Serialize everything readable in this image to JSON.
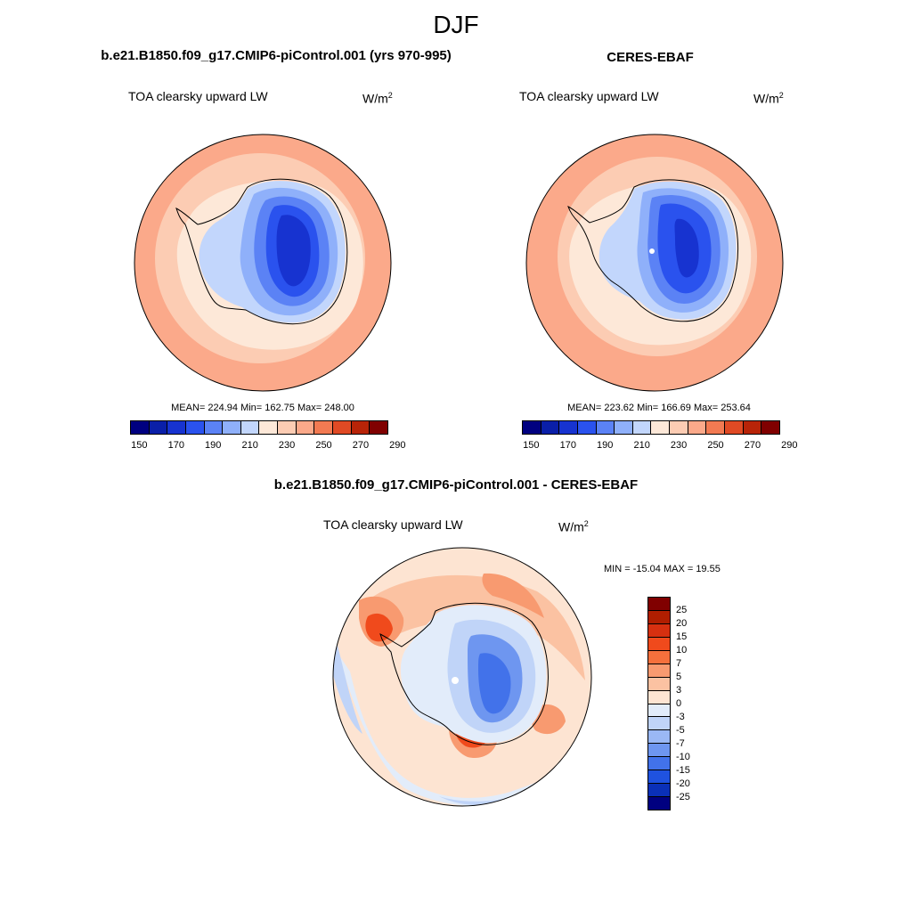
{
  "season": "DJF",
  "panels": {
    "model": {
      "title": "b.e21.B1850.f09_g17.CMIP6-piControl.001 (yrs 970-995)",
      "variable": "TOA clearsky upward LW",
      "units": "W/m",
      "units_exp": "2",
      "stats": "MEAN= 224.94  Min= 162.75  Max= 248.00"
    },
    "obs": {
      "title": "CERES-EBAF",
      "variable": "TOA clearsky upward LW",
      "units": "W/m",
      "units_exp": "2",
      "stats": "MEAN= 223.62  Min= 166.69  Max= 253.64"
    },
    "diff": {
      "title": "b.e21.B1850.f09_g17.CMIP6-piControl.001 - CERES-EBAF",
      "variable": "TOA clearsky upward LW",
      "units": "W/m",
      "units_exp": "2",
      "stats": "MIN = -15.04 MAX =  19.55"
    }
  },
  "colorbars": {
    "absolute": {
      "colors": [
        "#000080",
        "#0a1fa8",
        "#1733d0",
        "#2a52ee",
        "#5b82f5",
        "#8fb0fa",
        "#c2d6fc",
        "#fde8d8",
        "#fcccb3",
        "#fba98a",
        "#f27a52",
        "#e04a24",
        "#b82408",
        "#800000"
      ],
      "tick_labels": [
        "150",
        "170",
        "190",
        "210",
        "230",
        "250",
        "270",
        "290"
      ]
    },
    "difference": {
      "colors_top_to_bottom": [
        "#800000",
        "#b01e00",
        "#d63010",
        "#f04a1c",
        "#f5703c",
        "#f89a70",
        "#fbc2a2",
        "#fde4d2",
        "#e2ecfa",
        "#c0d4f8",
        "#9ab8f5",
        "#6e96f0",
        "#4272ea",
        "#1f52e0",
        "#0a30b8",
        "#000080"
      ],
      "tick_labels_top_to_bottom": [
        "25",
        "20",
        "15",
        "10",
        "7",
        "5",
        "3",
        "0",
        "-3",
        "-5",
        "-7",
        "-10",
        "-15",
        "-20",
        "-25"
      ]
    }
  },
  "map_colors": {
    "abs_ocean_outer": "#fba98a",
    "abs_ocean_mid": "#fcccb3",
    "abs_ocean_inner": "#fde8d8",
    "abs_ice_edge": "#c2d6fc",
    "abs_ice_1": "#8fb0fa",
    "abs_ice_2": "#5b82f5",
    "abs_ice_3": "#2a52ee",
    "abs_ice_4": "#1733d0",
    "diff_base": "#fde4d2",
    "diff_pos_1": "#fbc2a2",
    "diff_pos_2": "#f89a70",
    "diff_pos_3": "#f04a1c",
    "diff_neg_1": "#e2ecfa",
    "diff_neg_2": "#c0d4f8",
    "diff_neg_3": "#6e96f0",
    "diff_neg_4": "#4272ea"
  }
}
